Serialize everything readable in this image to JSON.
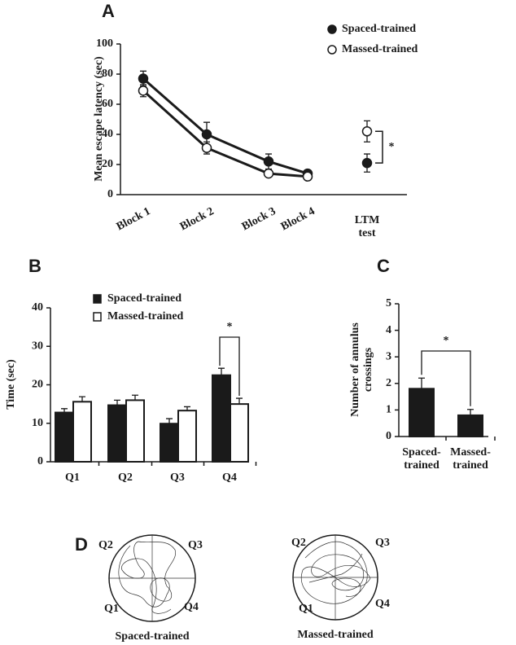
{
  "chart_data": [
    {
      "type": "line",
      "panel_label": "A",
      "ylabel": "Mean escape latency (sec)",
      "categories": [
        "Block 1",
        "Block 2",
        "Block 3",
        "Block 4",
        "LTM\ntest"
      ],
      "ylim": [
        0,
        100
      ],
      "yticks": [
        0,
        20,
        40,
        60,
        80,
        100
      ],
      "legend": "upper right",
      "annotation": "*",
      "series": [
        {
          "name": "Spaced-trained",
          "color": "#1a1a1a",
          "marker": "filled",
          "values": [
            77,
            40,
            22,
            14,
            21
          ],
          "errors": [
            5,
            8,
            5,
            2,
            6
          ]
        },
        {
          "name": "Massed-trained",
          "color": "#1a1a1a",
          "marker": "open",
          "values": [
            69,
            31,
            14,
            12,
            42
          ],
          "errors": [
            4,
            4,
            2,
            2,
            7
          ]
        }
      ]
    },
    {
      "type": "bar",
      "panel_label": "B",
      "ylabel": "Time (sec)",
      "categories": [
        "Q1",
        "Q2",
        "Q3",
        "Q4"
      ],
      "ylim": [
        0,
        40
      ],
      "yticks": [
        0,
        10,
        20,
        30,
        40
      ],
      "legend": "upper left",
      "annotation": "*",
      "series": [
        {
          "name": "Spaced-trained",
          "color": "#1a1a1a",
          "marker": "filled",
          "values": [
            12.8,
            14.7,
            9.9,
            22.5
          ],
          "errors": [
            1,
            1.3,
            1.3,
            1.8
          ]
        },
        {
          "name": "Massed-trained",
          "color": "#1a1a1a",
          "marker": "open",
          "values": [
            15.6,
            16,
            13.3,
            15
          ],
          "errors": [
            1.3,
            1.3,
            1,
            1.5
          ]
        }
      ]
    },
    {
      "type": "bar",
      "panel_label": "C",
      "ylabel": "Number of annulus\ncrossings",
      "categories": [
        "Spaced-\ntrained",
        "Massed-\ntrained"
      ],
      "ylim": [
        0,
        5
      ],
      "yticks": [
        0,
        1,
        2,
        3,
        4,
        5
      ],
      "annotation": "*",
      "color": "#1a1a1a",
      "values": [
        1.8,
        0.8
      ],
      "errors": [
        0.4,
        0.22
      ]
    }
  ],
  "panel_d": {
    "label": "D",
    "tracks": [
      {
        "title": "Spaced-trained",
        "quadrants": [
          "Q1",
          "Q2",
          "Q3",
          "Q4"
        ]
      },
      {
        "title": "Massed-trained",
        "quadrants": [
          "Q1",
          "Q2",
          "Q3",
          "Q4"
        ]
      }
    ]
  }
}
